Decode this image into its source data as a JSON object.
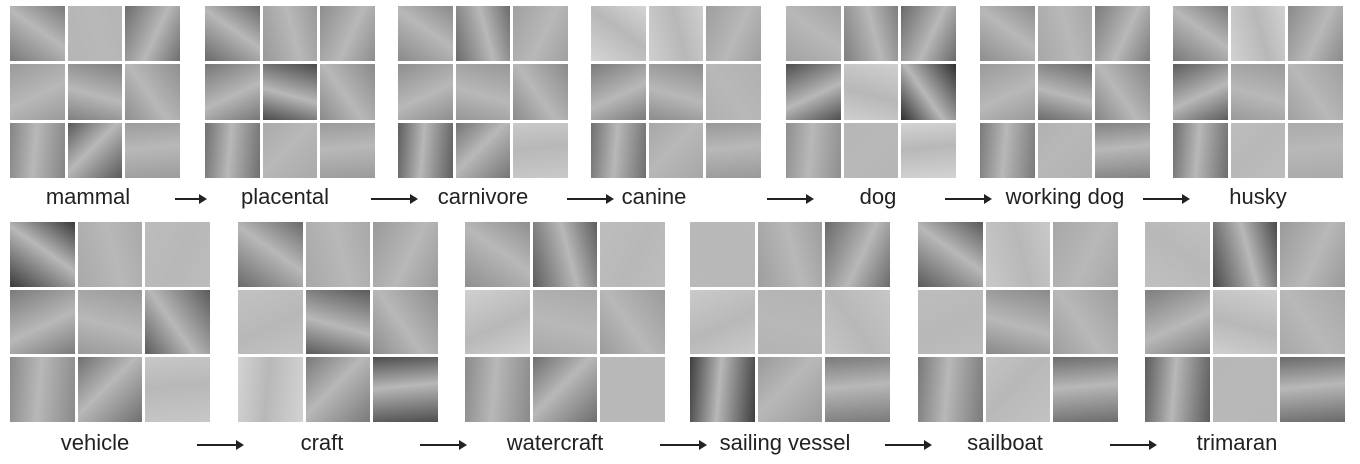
{
  "rows": [
    {
      "nodes": [
        {
          "label": "mammal",
          "tiles": [
            "#7a7a7a",
            "#b5b5b5",
            "#6e6e6e",
            "#9a9a9a",
            "#808080",
            "#8f8f8f",
            "#858585",
            "#5a5a5a",
            "#9c9c9c"
          ]
        },
        {
          "label": "placental",
          "tiles": [
            "#6a6a6a",
            "#999999",
            "#8d8d8d",
            "#777777",
            "#4a4a4a",
            "#8a8a8a",
            "#707070",
            "#aaaaaa",
            "#9b9b9b"
          ]
        },
        {
          "label": "carnivore",
          "tiles": [
            "#8a8a8a",
            "#6c6c6c",
            "#a0a0a0",
            "#8e8e8e",
            "#979797",
            "#8b8b8b",
            "#5e5e5e",
            "#757575",
            "#c9c9c9"
          ]
        },
        {
          "label": "canine",
          "tiles": [
            "#d5d5d5",
            "#cfcfcf",
            "#9e9e9e",
            "#7b7b7b",
            "#8c8c8c",
            "#b0b0b0",
            "#6f6f6f",
            "#a7a7a7",
            "#999999"
          ]
        },
        {
          "label": "dog",
          "tiles": [
            "#a3a3a3",
            "#7f7f7f",
            "#6a6a6a",
            "#4f4f4f",
            "#cfcfcf",
            "#2f2f2f",
            "#8f8f8f",
            "#b6b6b6",
            "#d3d3d3"
          ]
        },
        {
          "label": "working dog",
          "tiles": [
            "#8e8e8e",
            "#a7a7a7",
            "#7c7c7c",
            "#9a9a9a",
            "#6b6b6b",
            "#868686",
            "#7a7a7a",
            "#b1b1b1",
            "#838383"
          ]
        },
        {
          "label": "husky",
          "tiles": [
            "#7a7a7a",
            "#d2d2d2",
            "#8a8a8a",
            "#5d5d5d",
            "#9a9a9a",
            "#a0a0a0",
            "#6e6e6e",
            "#bdbdbd",
            "#aaaaaa"
          ]
        }
      ]
    },
    {
      "nodes": [
        {
          "label": "vehicle",
          "tiles": [
            "#3a3a3a",
            "#a9a9a9",
            "#bcbcbc",
            "#7b7b7b",
            "#9a9a9a",
            "#5c5c5c",
            "#8a8a8a",
            "#707070",
            "#c7c7c7"
          ]
        },
        {
          "label": "craft",
          "tiles": [
            "#6a6a6a",
            "#a8a8a8",
            "#9a9a9a",
            "#c2c2c2",
            "#5b5b5b",
            "#8e8e8e",
            "#d3d3d3",
            "#7a7a7a",
            "#4e4e4e"
          ]
        },
        {
          "label": "watercraft",
          "tiles": [
            "#8f8f8f",
            "#5e5e5e",
            "#bdbdbd",
            "#d0d0d0",
            "#a9a9a9",
            "#9b9b9b",
            "#8a8a8a",
            "#6e6e6e",
            "#b8b8b8"
          ]
        },
        {
          "label": "sailing vessel",
          "tiles": [
            "#b9b9b9",
            "#9e9e9e",
            "#6a6a6a",
            "#cacaca",
            "#b3b3b3",
            "#c6c6c6",
            "#3f3f3f",
            "#9a9a9a",
            "#7a7a7a"
          ]
        },
        {
          "label": "sailboat",
          "tiles": [
            "#5a5a5a",
            "#c9c9c9",
            "#a7a7a7",
            "#bdbdbd",
            "#8a8a8a",
            "#9e9e9e",
            "#7a7a7a",
            "#c3c3c3",
            "#6d6d6d"
          ]
        },
        {
          "label": "trimaran",
          "tiles": [
            "#c0c0c0",
            "#4a4a4a",
            "#9a9a9a",
            "#7e7e7e",
            "#cfcfcf",
            "#a8a8a8",
            "#5c5c5c",
            "#b7b7b7",
            "#6a6a6a"
          ]
        }
      ]
    }
  ]
}
